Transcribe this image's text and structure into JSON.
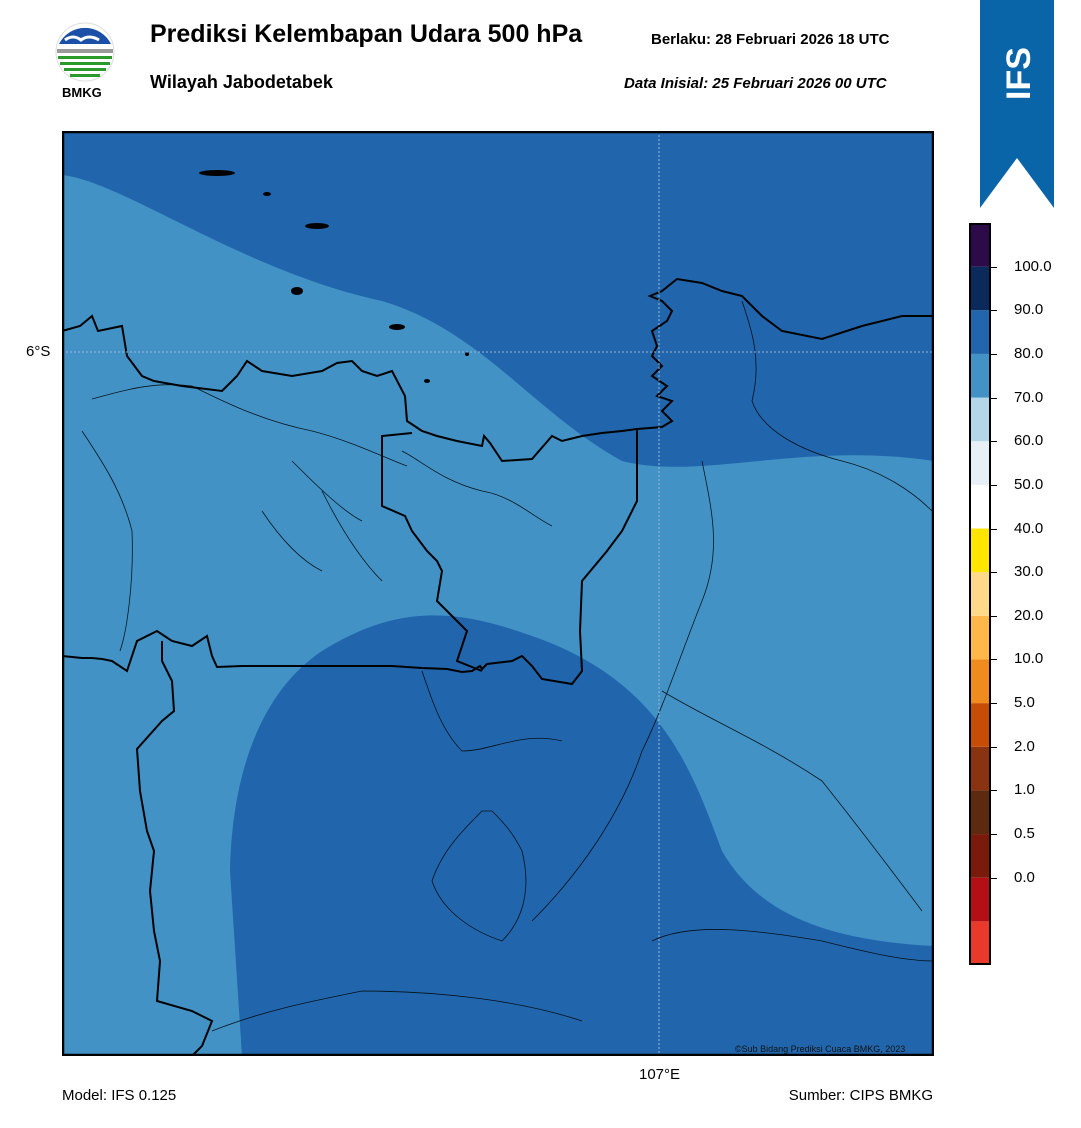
{
  "header": {
    "title": "Prediksi Kelembapan Udara 500 hPa",
    "region": "Wilayah Jabodetabek",
    "valid_label": "Berlaku:  28 Februari 2026 18 UTC",
    "init_label": "Data Inisial:  25 Februari 2026 00 UTC",
    "logo_text": "BMKG",
    "badge_text": "IFS"
  },
  "map": {
    "lat_label": "6°S",
    "lon_label": "107°E",
    "copyright": "©Sub Bidang Prediksi Cuaca BMKG, 2023",
    "humidity_zones": [
      {
        "range": "70-80",
        "color": "#4292c6"
      },
      {
        "range": "80-90",
        "color": "#2166ac"
      }
    ]
  },
  "colorbar": {
    "labels": [
      "100.0",
      "90.0",
      "80.0",
      "70.0",
      "60.0",
      "50.0",
      "40.0",
      "30.0",
      "20.0",
      "10.0",
      "5.0",
      "2.0",
      "1.0",
      "0.5",
      "0.0"
    ],
    "colors": [
      "#e8392b",
      "#b30f15",
      "#7a1a0a",
      "#5c2a0e",
      "#8a3310",
      "#c74c06",
      "#f08c1e",
      "#ffb74a",
      "#ffd98a",
      "#ffe500",
      "#ffffff",
      "#e8f0f7",
      "#b3d7e8",
      "#4292c6",
      "#2166ac",
      "#0a2a5c",
      "#2d0a4a"
    ]
  },
  "footer": {
    "model": "Model: IFS 0.125",
    "source": "Sumber: CIPS BMKG"
  }
}
